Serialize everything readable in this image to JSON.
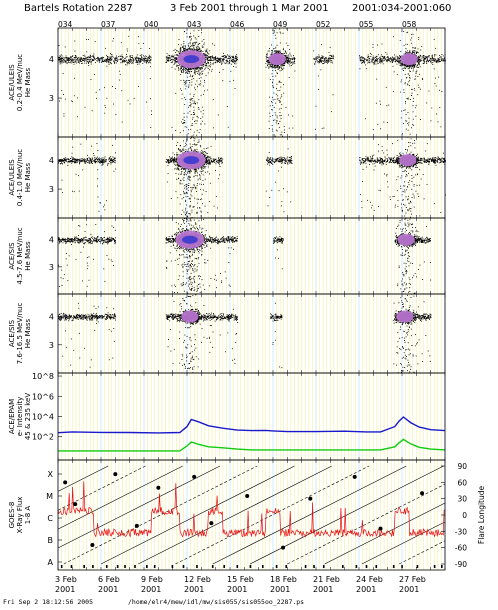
{
  "header": {
    "title": "Bartels Rotation 2287",
    "date_range": "3 Feb 2001 through 1 Mar 2001",
    "doy_range": "2001:034-2001:060"
  },
  "footer": {
    "timestamp": "Fri Sep  2 18:12:56 2005",
    "path": "/home/elr4/mew/idl/mw/sis055/sis055oo_2287.ps"
  },
  "colors": {
    "grid_yellow": "#f0ec8a",
    "grid_cyan": "#9fdcec",
    "dots": "#000000",
    "density_purple": "#c07ad8",
    "density_blue": "#3a3ad0",
    "epam_blue": "#1a1acc",
    "epam_green": "#10cc10",
    "goes_red": "#e81010"
  },
  "chart_data": [
    {
      "type": "scatter",
      "ylabel": [
        "ACE/ULEIS",
        "0.2-0.4 MeV/nuc",
        "He Mass"
      ],
      "yticks": [
        "4",
        "3"
      ],
      "ylim": [
        2.0,
        4.8
      ],
      "x_unit": "day-of-year 2001",
      "xlim": [
        34,
        61
      ],
      "hot_spots": [
        {
          "x": 43.3,
          "y": 4.0,
          "intensity": "dense"
        },
        {
          "x": 58.5,
          "y": 4.0,
          "intensity": "moderate"
        },
        {
          "x": 49.3,
          "y": 4.0,
          "intensity": "moderate"
        }
      ],
      "active_intervals": [
        [
          34.0,
          40.5
        ],
        [
          41.5,
          46.5
        ],
        [
          48.5,
          50.5
        ],
        [
          51.8,
          53.2
        ],
        [
          55.0,
          61.0
        ]
      ]
    },
    {
      "type": "scatter",
      "ylabel": [
        "ACE/ULEIS",
        "0.4-1.0 MeV/nuc",
        "He Mass"
      ],
      "yticks": [
        "4",
        "3"
      ],
      "ylim": [
        2.0,
        4.8
      ],
      "xlim": [
        34,
        61
      ],
      "hot_spots": [
        {
          "x": 43.3,
          "y": 4.0,
          "intensity": "dense"
        },
        {
          "x": 58.4,
          "y": 4.0,
          "intensity": "moderate"
        }
      ],
      "active_intervals": [
        [
          34.0,
          38.0
        ],
        [
          41.5,
          45.5
        ],
        [
          48.5,
          50.3
        ],
        [
          55.0,
          61.0
        ]
      ]
    },
    {
      "type": "scatter",
      "ylabel": [
        "ACE/SIS",
        "4.5-7.6 MeV/nuc",
        "He Mass"
      ],
      "yticks": [
        "4",
        "3"
      ],
      "ylim": [
        2.0,
        4.8
      ],
      "xlim": [
        34,
        61
      ],
      "hot_spots": [
        {
          "x": 43.2,
          "y": 4.0,
          "intensity": "dense"
        },
        {
          "x": 58.3,
          "y": 4.0,
          "intensity": "moderate"
        }
      ],
      "active_intervals": [
        [
          34.0,
          38.0
        ],
        [
          41.5,
          46.5
        ],
        [
          49.0,
          49.7
        ],
        [
          57.5,
          60.0
        ]
      ]
    },
    {
      "type": "scatter",
      "ylabel": [
        "ACE/SIS",
        "7.6-16.5 MeV/nuc",
        "He Mass"
      ],
      "yticks": [
        "4",
        "3"
      ],
      "ylim": [
        2.0,
        4.8
      ],
      "xlim": [
        34,
        61
      ],
      "hot_spots": [
        {
          "x": 43.2,
          "y": 4.0,
          "intensity": "moderate"
        },
        {
          "x": 58.2,
          "y": 4.0,
          "intensity": "moderate"
        }
      ],
      "active_intervals": [
        [
          34.0,
          38.0
        ],
        [
          41.5,
          46.5
        ],
        [
          48.8,
          49.6
        ],
        [
          57.5,
          60.0
        ]
      ]
    },
    {
      "type": "line",
      "ylabel": [
        "ACE/EPAM",
        "e- Intensity",
        "45 & 235 keV"
      ],
      "yscale": "log",
      "yticks": [
        "10^8",
        "10^6",
        "10^4",
        "10^2"
      ],
      "ylim": [
        0.5,
        200000000
      ],
      "xlim": [
        34,
        61
      ],
      "series": [
        {
          "name": "45 keV",
          "color": "#1a1acc",
          "x": [
            34.0,
            35.0,
            37.0,
            39.0,
            41.0,
            42.5,
            43.0,
            43.3,
            43.8,
            44.5,
            45.5,
            46.5,
            47.5,
            48.5,
            49.0,
            50.0,
            52.0,
            54.0,
            55.5,
            56.5,
            57.5,
            57.8,
            58.1,
            58.6,
            59.2,
            60.0,
            61.0
          ],
          "y": [
            250,
            300,
            270,
            260,
            240,
            260,
            1000,
            5000,
            3000,
            1200,
            700,
            450,
            400,
            420,
            380,
            320,
            320,
            350,
            300,
            300,
            1000,
            3500,
            9000,
            2500,
            900,
            500,
            400
          ]
        },
        {
          "name": "235 keV",
          "color": "#10cc10",
          "x": [
            34.0,
            35.0,
            37.0,
            39.0,
            41.0,
            42.5,
            43.0,
            43.3,
            43.8,
            44.5,
            45.5,
            46.5,
            47.5,
            48.5,
            49.0,
            50.0,
            52.0,
            54.0,
            55.5,
            56.5,
            57.5,
            57.8,
            58.1,
            58.6,
            59.2,
            60.0,
            61.0
          ],
          "y": [
            4,
            4,
            4,
            4,
            4,
            4,
            12,
            30,
            18,
            10,
            8,
            6,
            5,
            5,
            5,
            5,
            5,
            5,
            5,
            5,
            10,
            25,
            55,
            20,
            9,
            6,
            5
          ]
        }
      ]
    },
    {
      "type": "line",
      "ylabel": [
        "GOES-8",
        "X-Ray Flux",
        "1-8 A"
      ],
      "yticks": [
        "X",
        "M",
        "C",
        "B",
        "A"
      ],
      "y2label": "Flare Longitude",
      "y2ticks": [
        "90",
        "60",
        "30",
        "0",
        "-30",
        "-60",
        "-90"
      ],
      "xlim": [
        34,
        61
      ],
      "xticks": [
        {
          "x": 34,
          "label": "3 Feb",
          "year": "2001"
        },
        {
          "x": 37,
          "label": "6 Feb",
          "year": "2001"
        },
        {
          "x": 40,
          "label": "9 Feb",
          "year": "2001"
        },
        {
          "x": 43,
          "label": "12 Feb",
          "year": "2001"
        },
        {
          "x": 46,
          "label": "15 Feb",
          "year": "2001"
        },
        {
          "x": 49,
          "label": "18 Feb",
          "year": "2001"
        },
        {
          "x": 52,
          "label": "21 Feb",
          "year": "2001"
        },
        {
          "x": 55,
          "label": "24 Feb",
          "year": "2001"
        },
        {
          "x": 58,
          "label": "27 Feb",
          "year": "2001"
        }
      ],
      "series": [
        {
          "name": "X-Ray Flux",
          "color": "#e81010",
          "x": [
            34.0,
            35.0,
            36.0,
            37.0,
            38.0,
            39.0,
            40.0,
            41.0,
            42.0,
            43.0,
            44.0,
            45.0,
            46.0,
            47.0,
            48.0,
            49.0,
            50.0,
            51.0,
            52.0,
            53.0,
            54.0,
            55.0,
            56.0,
            57.0,
            58.0,
            59.0,
            60.0,
            61.0
          ],
          "y": [
            "C",
            "C",
            "C",
            "B",
            "B",
            "B",
            "B",
            "C",
            "C",
            "B",
            "B",
            "C",
            "B",
            "B",
            "B",
            "C",
            "B",
            "B",
            "B",
            "B",
            "B",
            "B",
            "B",
            "B",
            "C",
            "B",
            "B",
            "B"
          ]
        }
      ],
      "flare_longitudes": [
        {
          "x": 34.5,
          "y": 60
        },
        {
          "x": 35.2,
          "y": 20
        },
        {
          "x": 36.4,
          "y": -55
        },
        {
          "x": 38.0,
          "y": 75
        },
        {
          "x": 39.5,
          "y": -20
        },
        {
          "x": 41.0,
          "y": 50
        },
        {
          "x": 43.5,
          "y": 70
        },
        {
          "x": 44.7,
          "y": -15
        },
        {
          "x": 47.2,
          "y": 35
        },
        {
          "x": 49.7,
          "y": -60
        },
        {
          "x": 51.6,
          "y": 30
        },
        {
          "x": 54.7,
          "y": 70
        },
        {
          "x": 56.5,
          "y": -25
        },
        {
          "x": 59.4,
          "y": 40
        }
      ]
    }
  ],
  "top_axis": {
    "doy_labels": [
      "034",
      "037",
      "040",
      "043",
      "046",
      "049",
      "052",
      "055",
      "058"
    ]
  }
}
